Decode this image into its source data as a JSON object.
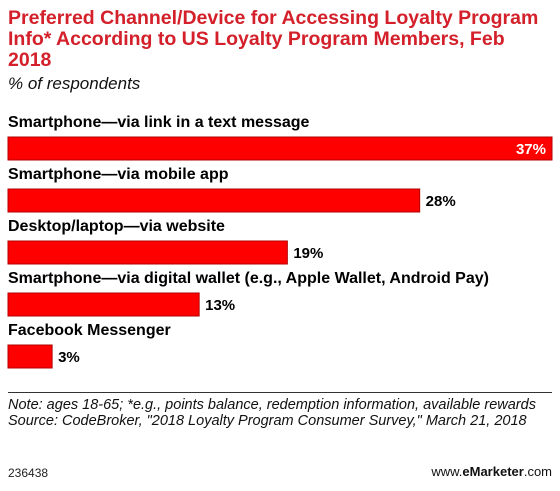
{
  "title": "Preferred Channel/Device for Accessing Loyalty Program Info* According to US Loyalty Program Members, Feb 2018",
  "subtitle": "% of respondents",
  "chart_data": {
    "type": "bar",
    "orientation": "horizontal",
    "categories": [
      "Smartphone—via link in a text message",
      "Smartphone—via mobile app",
      "Desktop/laptop—via website",
      "Smartphone—via digital wallet (e.g., Apple Wallet, Android Pay)",
      "Facebook Messenger"
    ],
    "values": [
      37,
      28,
      19,
      13,
      3
    ],
    "value_labels": [
      "37%",
      "28%",
      "19%",
      "13%",
      "3%"
    ],
    "xlim": [
      0,
      37
    ],
    "grid": false,
    "bar_color": "#ff0000"
  },
  "notes": {
    "note": "Note: ages 18-65; *e.g., points balance, redemption information, available rewards",
    "source": "Source: CodeBroker, \"2018 Loyalty Program Consumer Survey,\" March 21, 2018"
  },
  "footer": {
    "chart_id": "236438",
    "brand_prefix": "www.",
    "brand_bold": "eMarketer",
    "brand_suffix": ".com"
  },
  "colors": {
    "title": "#d3202a",
    "bar": "#ff0000",
    "bar_border": "#b00000"
  }
}
